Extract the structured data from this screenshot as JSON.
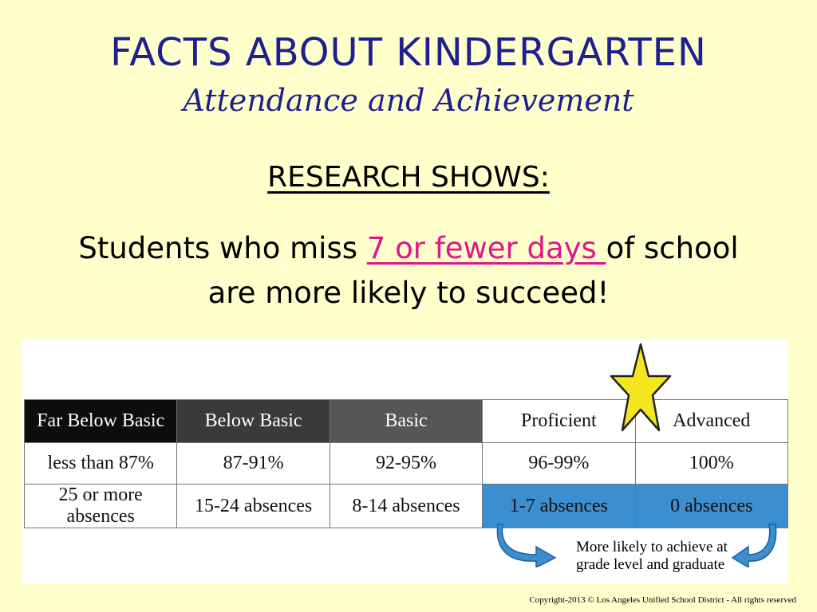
{
  "slide": {
    "title": "FACTS ABOUT KINDERGARTEN",
    "subtitle": "Attendance and Achievement",
    "research_heading": "RESEARCH SHOWS:",
    "statement_pre": "Students who miss ",
    "statement_highlight": "7 or fewer days ",
    "statement_post": "of school",
    "statement_line2": "are more likely to succeed!",
    "highlight_color": "#E0158A",
    "title_color": "#1F1F8F"
  },
  "table": {
    "headers": [
      "Far Below Basic",
      "Below Basic",
      "Basic",
      "Proficient",
      "Advanced"
    ],
    "attendance": [
      "less than 87%",
      "87-91%",
      "92-95%",
      "96-99%",
      "100%"
    ],
    "absences": [
      "25 or more absences",
      "15-24 absences",
      "8-14 absences",
      "1-7 absences",
      "0 absences"
    ],
    "highlight_color": "#3B8FD0"
  },
  "note": {
    "line1": "More likely to achieve at",
    "line2": "grade level and graduate"
  },
  "star_icon": "star-icon",
  "copyright": "Copyright-2013 © Los Angeles Unified School District - All rights reserved"
}
